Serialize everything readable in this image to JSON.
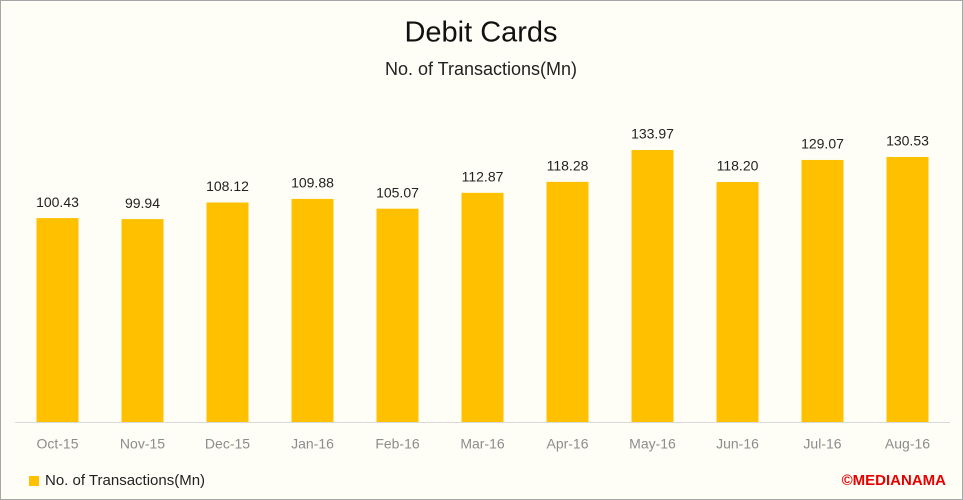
{
  "chart_data": {
    "type": "bar",
    "title": "Debit Cards",
    "subtitle": "No. of Transactions(Mn)",
    "categories": [
      "Oct-15",
      "Nov-15",
      "Dec-15",
      "Jan-16",
      "Feb-16",
      "Mar-16",
      "Apr-16",
      "May-16",
      "Jun-16",
      "Jul-16",
      "Aug-16"
    ],
    "series": [
      {
        "name": "No. of Transactions(Mn)",
        "color": "#ffc000",
        "values": [
          100.43,
          99.94,
          108.12,
          109.88,
          105.07,
          112.87,
          118.28,
          133.97,
          118.2,
          129.07,
          130.53
        ],
        "value_labels": [
          "100.43",
          "99.94",
          "108.12",
          "109.88",
          "105.07",
          "112.87",
          "118.28",
          "133.97",
          "118.20",
          "129.07",
          "130.53"
        ]
      }
    ],
    "legend": "bottom-left",
    "credit": "©MEDIANAMA"
  }
}
